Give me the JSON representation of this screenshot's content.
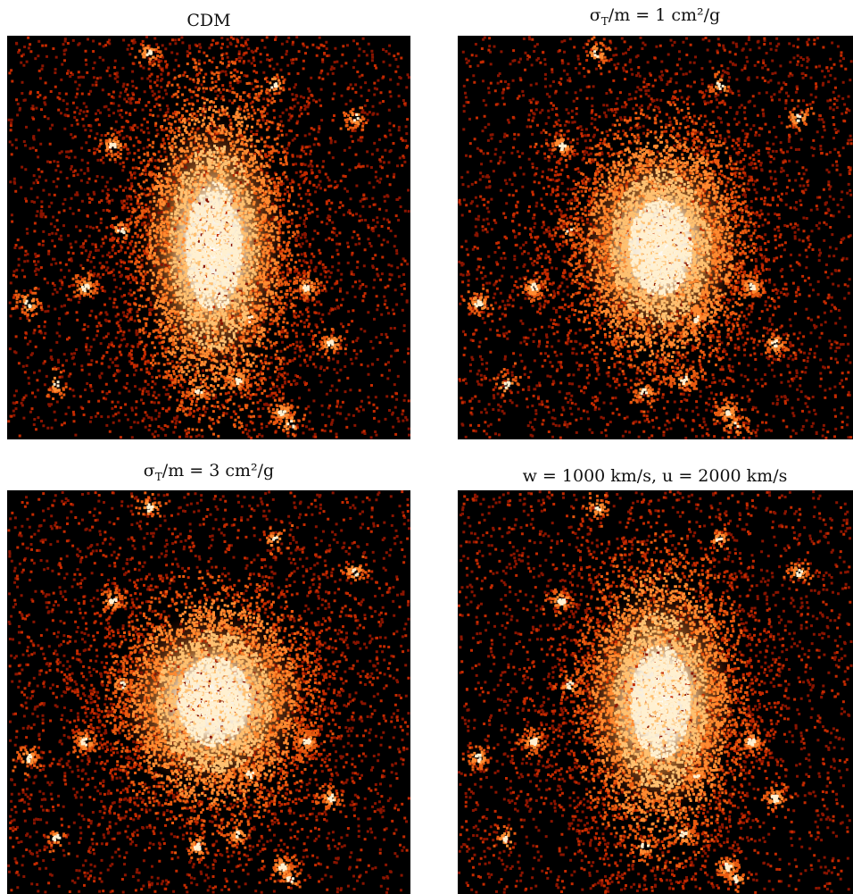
{
  "panels": [
    {
      "title": "CDM"
    },
    {
      "title": "σT/m = 1 cm²/g"
    },
    {
      "title": "σT/m = 3 cm²/g"
    },
    {
      "title": "w = 1000 km/s, u = 2000 km/s"
    }
  ]
}
